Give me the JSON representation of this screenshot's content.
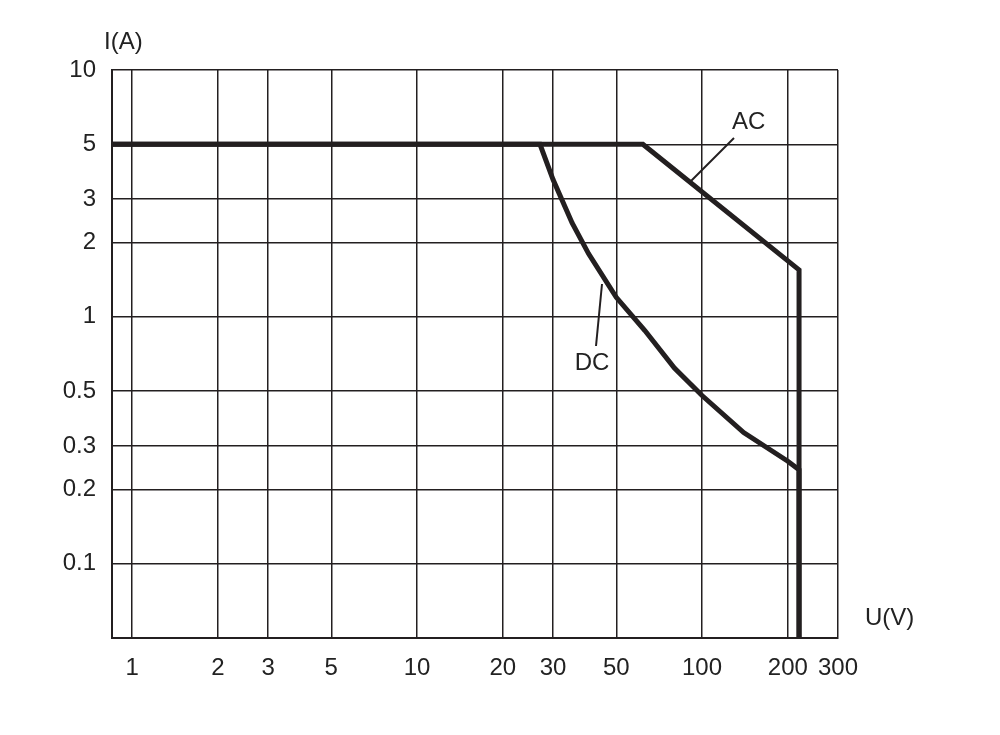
{
  "chart_data": {
    "type": "line",
    "x_label": "U(V)",
    "y_label": "I(A)",
    "log": true,
    "grid": true,
    "color": "#231f20",
    "xlim": [
      0.85,
      300
    ],
    "xticks": [
      1,
      2,
      3,
      5,
      10,
      20,
      30,
      50,
      100,
      200,
      300
    ],
    "ylim": [
      0.05,
      10
    ],
    "yticks": [
      0.1,
      0.2,
      0.3,
      0.5,
      1,
      2,
      3,
      5,
      10
    ],
    "series": [
      {
        "name": "AC",
        "color": "#231f20",
        "x": [
          0.85,
          62,
          219,
          219
        ],
        "values": [
          5,
          5,
          1.55,
          0.05
        ]
      },
      {
        "name": "DC",
        "color": "#231f20",
        "x": [
          0.85,
          27,
          30,
          35,
          40,
          50,
          63,
          80,
          100,
          140,
          200,
          219,
          219
        ],
        "values": [
          5,
          5,
          3.6,
          2.4,
          1.8,
          1.2,
          0.88,
          0.62,
          0.48,
          0.34,
          0.26,
          0.24,
          0.05
        ]
      }
    ]
  }
}
